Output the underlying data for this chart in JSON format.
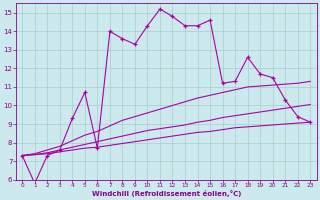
{
  "xlabel": "Windchill (Refroidissement éolien,°C)",
  "background_color": "#cceaed",
  "grid_color": "#aacccc",
  "line_color": "#aa00aa",
  "x": [
    0,
    1,
    2,
    3,
    4,
    5,
    6,
    7,
    8,
    9,
    10,
    11,
    12,
    13,
    14,
    15,
    16,
    17,
    18,
    19,
    20,
    21,
    22,
    23
  ],
  "y_main": [
    7.3,
    5.8,
    7.3,
    7.6,
    9.3,
    10.7,
    7.7,
    14.0,
    13.6,
    13.3,
    14.3,
    15.2,
    14.8,
    14.3,
    14.3,
    14.6,
    11.2,
    11.3,
    12.6,
    11.7,
    11.5,
    10.3,
    9.4,
    9.1
  ],
  "y_line1": [
    7.3,
    7.35,
    7.4,
    7.5,
    7.6,
    7.7,
    7.75,
    7.85,
    7.95,
    8.05,
    8.15,
    8.25,
    8.35,
    8.45,
    8.55,
    8.6,
    8.7,
    8.8,
    8.85,
    8.9,
    8.95,
    9.0,
    9.05,
    9.1
  ],
  "y_line2": [
    7.3,
    7.35,
    7.45,
    7.6,
    7.75,
    7.9,
    8.05,
    8.2,
    8.35,
    8.5,
    8.65,
    8.75,
    8.85,
    8.95,
    9.1,
    9.2,
    9.35,
    9.45,
    9.55,
    9.65,
    9.75,
    9.85,
    9.95,
    10.05
  ],
  "y_line3": [
    7.3,
    7.4,
    7.6,
    7.8,
    8.1,
    8.4,
    8.6,
    8.9,
    9.2,
    9.4,
    9.6,
    9.8,
    10.0,
    10.2,
    10.4,
    10.55,
    10.7,
    10.85,
    11.0,
    11.05,
    11.1,
    11.15,
    11.2,
    11.3
  ],
  "ylim": [
    6,
    15.5
  ],
  "xlim_min": -0.5,
  "xlim_max": 23.5,
  "yticks": [
    6,
    7,
    8,
    9,
    10,
    11,
    12,
    13,
    14,
    15
  ],
  "xticks": [
    0,
    1,
    2,
    3,
    4,
    5,
    6,
    7,
    8,
    9,
    10,
    11,
    12,
    13,
    14,
    15,
    16,
    17,
    18,
    19,
    20,
    21,
    22,
    23
  ]
}
